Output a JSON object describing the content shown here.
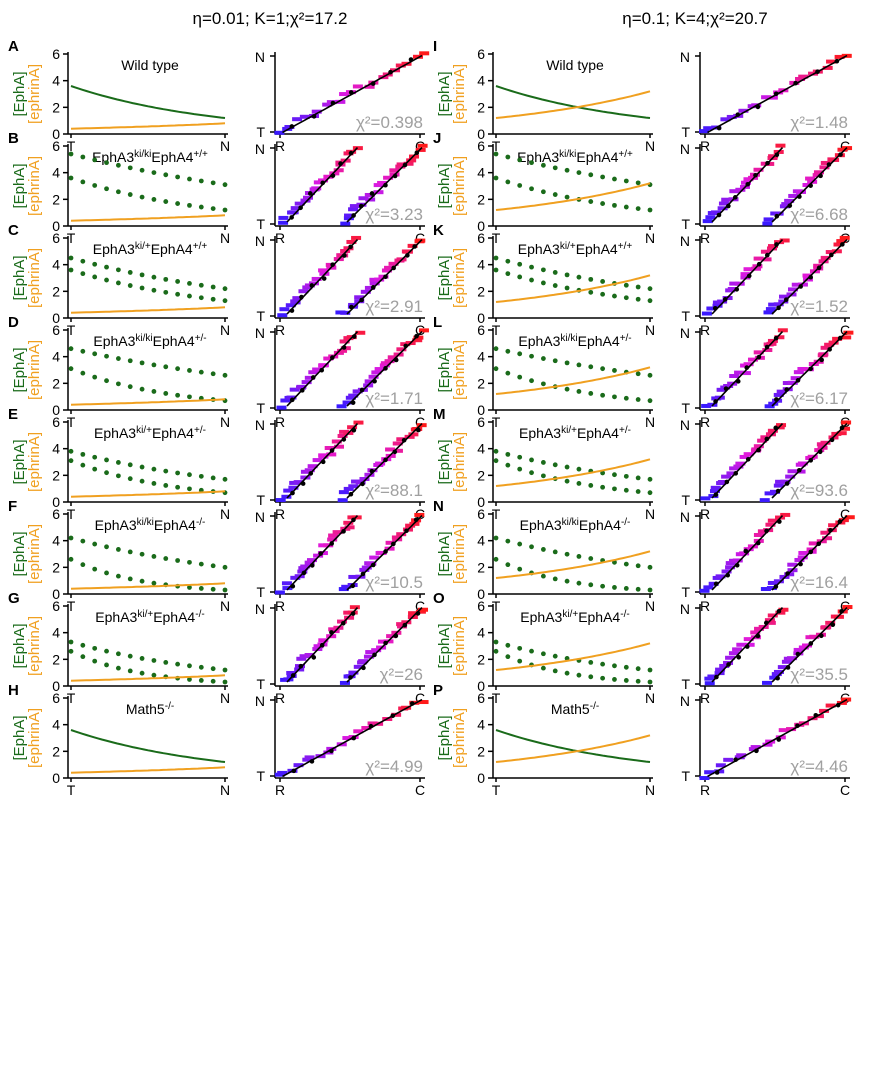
{
  "left_header": "η=0.01; K=1;χ²=17.2",
  "right_header": "η=0.1; K=4;χ²=20.7",
  "axis_labels": {
    "y_top": "[EphA]",
    "y_bottom": "[ephrinA]",
    "x_start": "T",
    "x_end": "N",
    "map_x_start": "R",
    "map_x_end": "C",
    "map_y_top": "N",
    "map_y_bottom": "T"
  },
  "colors": {
    "epha": "#1a6b1a",
    "ephrin": "#f0a020",
    "fit": "#000000",
    "chi": "#a0a0a0",
    "gradient_start": "#3a1aff",
    "gradient_mid": "#e01ae0",
    "gradient_end": "#ff1a1a"
  },
  "chart_data": [
    {
      "panel": "A",
      "type": "line",
      "genotype": "Wild type",
      "chi2": "χ²=0.398",
      "yticks": [
        0,
        2,
        4,
        6
      ],
      "ylim": [
        0,
        6
      ],
      "series": [
        {
          "name": "[EphA]",
          "style": "line",
          "y_start": 3.6,
          "y_end": 1.2
        },
        {
          "name": "[ephrinA]",
          "style": "line",
          "y_start": 0.4,
          "y_end": 0.8
        }
      ],
      "map": {
        "type": "scatter",
        "branches": 1
      }
    },
    {
      "panel": "B",
      "type": "line",
      "genotype": "EphA3ki/kiEphA4+/+",
      "chi2": "χ²=3.23",
      "yticks": [
        0,
        2,
        4,
        6
      ],
      "ylim": [
        0,
        6
      ],
      "series": [
        {
          "name": "[EphA]",
          "style": "dots",
          "y_start": 5.4,
          "y_end": 3.1
        },
        {
          "name": "[EphA]",
          "style": "dots",
          "y_start": 3.6,
          "y_end": 1.2
        },
        {
          "name": "[ephrinA]",
          "style": "line",
          "y_start": 0.4,
          "y_end": 0.8
        }
      ],
      "map": {
        "type": "scatter",
        "branches": 2
      }
    },
    {
      "panel": "C",
      "type": "line",
      "genotype": "EphA3ki/+EphA4+/+",
      "chi2": "χ²=2.91",
      "yticks": [
        0,
        2,
        4,
        6
      ],
      "ylim": [
        0,
        6
      ],
      "series": [
        {
          "name": "[EphA]",
          "style": "dots",
          "y_start": 4.5,
          "y_end": 2.2
        },
        {
          "name": "[EphA]",
          "style": "dots",
          "y_start": 3.6,
          "y_end": 1.3
        },
        {
          "name": "[ephrinA]",
          "style": "line",
          "y_start": 0.4,
          "y_end": 0.8
        }
      ],
      "map": {
        "type": "scatter",
        "branches": 2
      }
    },
    {
      "panel": "D",
      "type": "line",
      "genotype": "EphA3ki/kiEphA4+/-",
      "chi2": "χ²=1.71",
      "yticks": [
        0,
        2,
        4,
        6
      ],
      "ylim": [
        0,
        6
      ],
      "series": [
        {
          "name": "[EphA]",
          "style": "dots",
          "y_start": 4.6,
          "y_end": 2.6
        },
        {
          "name": "[EphA]",
          "style": "dots",
          "y_start": 3.1,
          "y_end": 0.7
        },
        {
          "name": "[ephrinA]",
          "style": "line",
          "y_start": 0.4,
          "y_end": 0.8
        }
      ],
      "map": {
        "type": "scatter",
        "branches": 2
      }
    },
    {
      "panel": "E",
      "type": "line",
      "genotype": "EphA3ki/+EphA4+/-",
      "chi2": "χ²=88.1",
      "yticks": [
        0,
        2,
        4,
        6
      ],
      "ylim": [
        0,
        6
      ],
      "series": [
        {
          "name": "[EphA]",
          "style": "dots",
          "y_start": 3.8,
          "y_end": 1.7
        },
        {
          "name": "[EphA]",
          "style": "dots",
          "y_start": 3.1,
          "y_end": 0.7
        },
        {
          "name": "[ephrinA]",
          "style": "line",
          "y_start": 0.4,
          "y_end": 0.8
        }
      ],
      "map": {
        "type": "scatter",
        "branches": 2
      }
    },
    {
      "panel": "F",
      "type": "line",
      "genotype": "EphA3ki/kiEphA4-/-",
      "chi2": "χ²=10.5",
      "yticks": [
        0,
        2,
        4,
        6
      ],
      "ylim": [
        0,
        6
      ],
      "series": [
        {
          "name": "[EphA]",
          "style": "dots",
          "y_start": 4.2,
          "y_end": 2.0
        },
        {
          "name": "[EphA]",
          "style": "dots",
          "y_start": 2.6,
          "y_end": 0.3
        },
        {
          "name": "[ephrinA]",
          "style": "line",
          "y_start": 0.4,
          "y_end": 0.8
        }
      ],
      "map": {
        "type": "scatter",
        "branches": 2
      }
    },
    {
      "panel": "G",
      "type": "line",
      "genotype": "EphA3ki/+EphA4-/-",
      "chi2": "χ²=26",
      "yticks": [
        0,
        2,
        4,
        6
      ],
      "ylim": [
        0,
        6
      ],
      "series": [
        {
          "name": "[EphA]",
          "style": "dots",
          "y_start": 3.3,
          "y_end": 1.2
        },
        {
          "name": "[EphA]",
          "style": "dots",
          "y_start": 2.6,
          "y_end": 0.3
        },
        {
          "name": "[ephrinA]",
          "style": "line",
          "y_start": 0.4,
          "y_end": 0.8
        }
      ],
      "map": {
        "type": "scatter",
        "branches": 2
      }
    },
    {
      "panel": "H",
      "type": "line",
      "genotype": "Math5-/-",
      "chi2": "χ²=4.99",
      "yticks": [
        0,
        2,
        4,
        6
      ],
      "ylim": [
        0,
        6
      ],
      "series": [
        {
          "name": "[EphA]",
          "style": "line",
          "y_start": 3.6,
          "y_end": 1.2
        },
        {
          "name": "[ephrinA]",
          "style": "line",
          "y_start": 0.4,
          "y_end": 0.8
        }
      ],
      "map": {
        "type": "scatter",
        "branches": 1
      }
    },
    {
      "panel": "I",
      "type": "line",
      "genotype": "Wild type",
      "chi2": "χ²=1.48",
      "yticks": [
        0,
        2,
        4,
        6
      ],
      "ylim": [
        0,
        6
      ],
      "series": [
        {
          "name": "[EphA]",
          "style": "line",
          "y_start": 3.6,
          "y_end": 1.2
        },
        {
          "name": "[ephrinA]",
          "style": "line",
          "y_start": 1.2,
          "y_end": 3.2
        }
      ],
      "map": {
        "type": "scatter",
        "branches": 1
      }
    },
    {
      "panel": "J",
      "type": "line",
      "genotype": "EphA3ki/kiEphA4+/+",
      "chi2": "χ²=6.68",
      "yticks": [
        0,
        2,
        4,
        6
      ],
      "ylim": [
        0,
        6
      ],
      "series": [
        {
          "name": "[EphA]",
          "style": "dots",
          "y_start": 5.4,
          "y_end": 3.1
        },
        {
          "name": "[EphA]",
          "style": "dots",
          "y_start": 3.6,
          "y_end": 1.2
        },
        {
          "name": "[ephrinA]",
          "style": "line",
          "y_start": 1.2,
          "y_end": 3.2
        }
      ],
      "map": {
        "type": "scatter",
        "branches": 2
      }
    },
    {
      "panel": "K",
      "type": "line",
      "genotype": "EphA3ki/+EphA4+/+",
      "chi2": "χ²=1.52",
      "yticks": [
        0,
        2,
        4,
        6
      ],
      "ylim": [
        0,
        6
      ],
      "series": [
        {
          "name": "[EphA]",
          "style": "dots",
          "y_start": 4.5,
          "y_end": 2.2
        },
        {
          "name": "[EphA]",
          "style": "dots",
          "y_start": 3.6,
          "y_end": 1.3
        },
        {
          "name": "[ephrinA]",
          "style": "line",
          "y_start": 1.2,
          "y_end": 3.2
        }
      ],
      "map": {
        "type": "scatter",
        "branches": 2
      }
    },
    {
      "panel": "L",
      "type": "line",
      "genotype": "EphA3ki/kiEphA4+/-",
      "chi2": "χ²=6.17",
      "yticks": [
        0,
        2,
        4,
        6
      ],
      "ylim": [
        0,
        6
      ],
      "series": [
        {
          "name": "[EphA]",
          "style": "dots",
          "y_start": 4.6,
          "y_end": 2.6
        },
        {
          "name": "[EphA]",
          "style": "dots",
          "y_start": 3.1,
          "y_end": 0.7
        },
        {
          "name": "[ephrinA]",
          "style": "line",
          "y_start": 1.2,
          "y_end": 3.2
        }
      ],
      "map": {
        "type": "scatter",
        "branches": 2
      }
    },
    {
      "panel": "M",
      "type": "line",
      "genotype": "EphA3ki/+EphA4+/-",
      "chi2": "χ²=93.6",
      "yticks": [
        0,
        2,
        4,
        6
      ],
      "ylim": [
        0,
        6
      ],
      "series": [
        {
          "name": "[EphA]",
          "style": "dots",
          "y_start": 3.8,
          "y_end": 1.7
        },
        {
          "name": "[EphA]",
          "style": "dots",
          "y_start": 3.1,
          "y_end": 0.7
        },
        {
          "name": "[ephrinA]",
          "style": "line",
          "y_start": 1.2,
          "y_end": 3.2
        }
      ],
      "map": {
        "type": "scatter",
        "branches": 2
      }
    },
    {
      "panel": "N",
      "type": "line",
      "genotype": "EphA3ki/kiEphA4-/-",
      "chi2": "χ²=16.4",
      "yticks": [
        0,
        2,
        4,
        6
      ],
      "ylim": [
        0,
        6
      ],
      "series": [
        {
          "name": "[EphA]",
          "style": "dots",
          "y_start": 4.2,
          "y_end": 2.0
        },
        {
          "name": "[EphA]",
          "style": "dots",
          "y_start": 2.6,
          "y_end": 0.3
        },
        {
          "name": "[ephrinA]",
          "style": "line",
          "y_start": 1.2,
          "y_end": 3.2
        }
      ],
      "map": {
        "type": "scatter",
        "branches": 2
      }
    },
    {
      "panel": "O",
      "type": "line",
      "genotype": "EphA3ki/+EphA4-/-",
      "chi2": "χ²=35.5",
      "yticks": [
        0,
        2,
        4,
        6
      ],
      "ylim": [
        0,
        6
      ],
      "series": [
        {
          "name": "[EphA]",
          "style": "dots",
          "y_start": 3.3,
          "y_end": 1.2
        },
        {
          "name": "[EphA]",
          "style": "dots",
          "y_start": 2.6,
          "y_end": 0.3
        },
        {
          "name": "[ephrinA]",
          "style": "line",
          "y_start": 1.2,
          "y_end": 3.2
        }
      ],
      "map": {
        "type": "scatter",
        "branches": 2
      }
    },
    {
      "panel": "P",
      "type": "line",
      "genotype": "Math5-/-",
      "chi2": "χ²=4.46",
      "yticks": [
        0,
        2,
        4,
        6
      ],
      "ylim": [
        0,
        6
      ],
      "series": [
        {
          "name": "[EphA]",
          "style": "line",
          "y_start": 3.6,
          "y_end": 1.2
        },
        {
          "name": "[ephrinA]",
          "style": "line",
          "y_start": 1.2,
          "y_end": 3.2
        }
      ],
      "map": {
        "type": "scatter",
        "branches": 1
      }
    }
  ]
}
